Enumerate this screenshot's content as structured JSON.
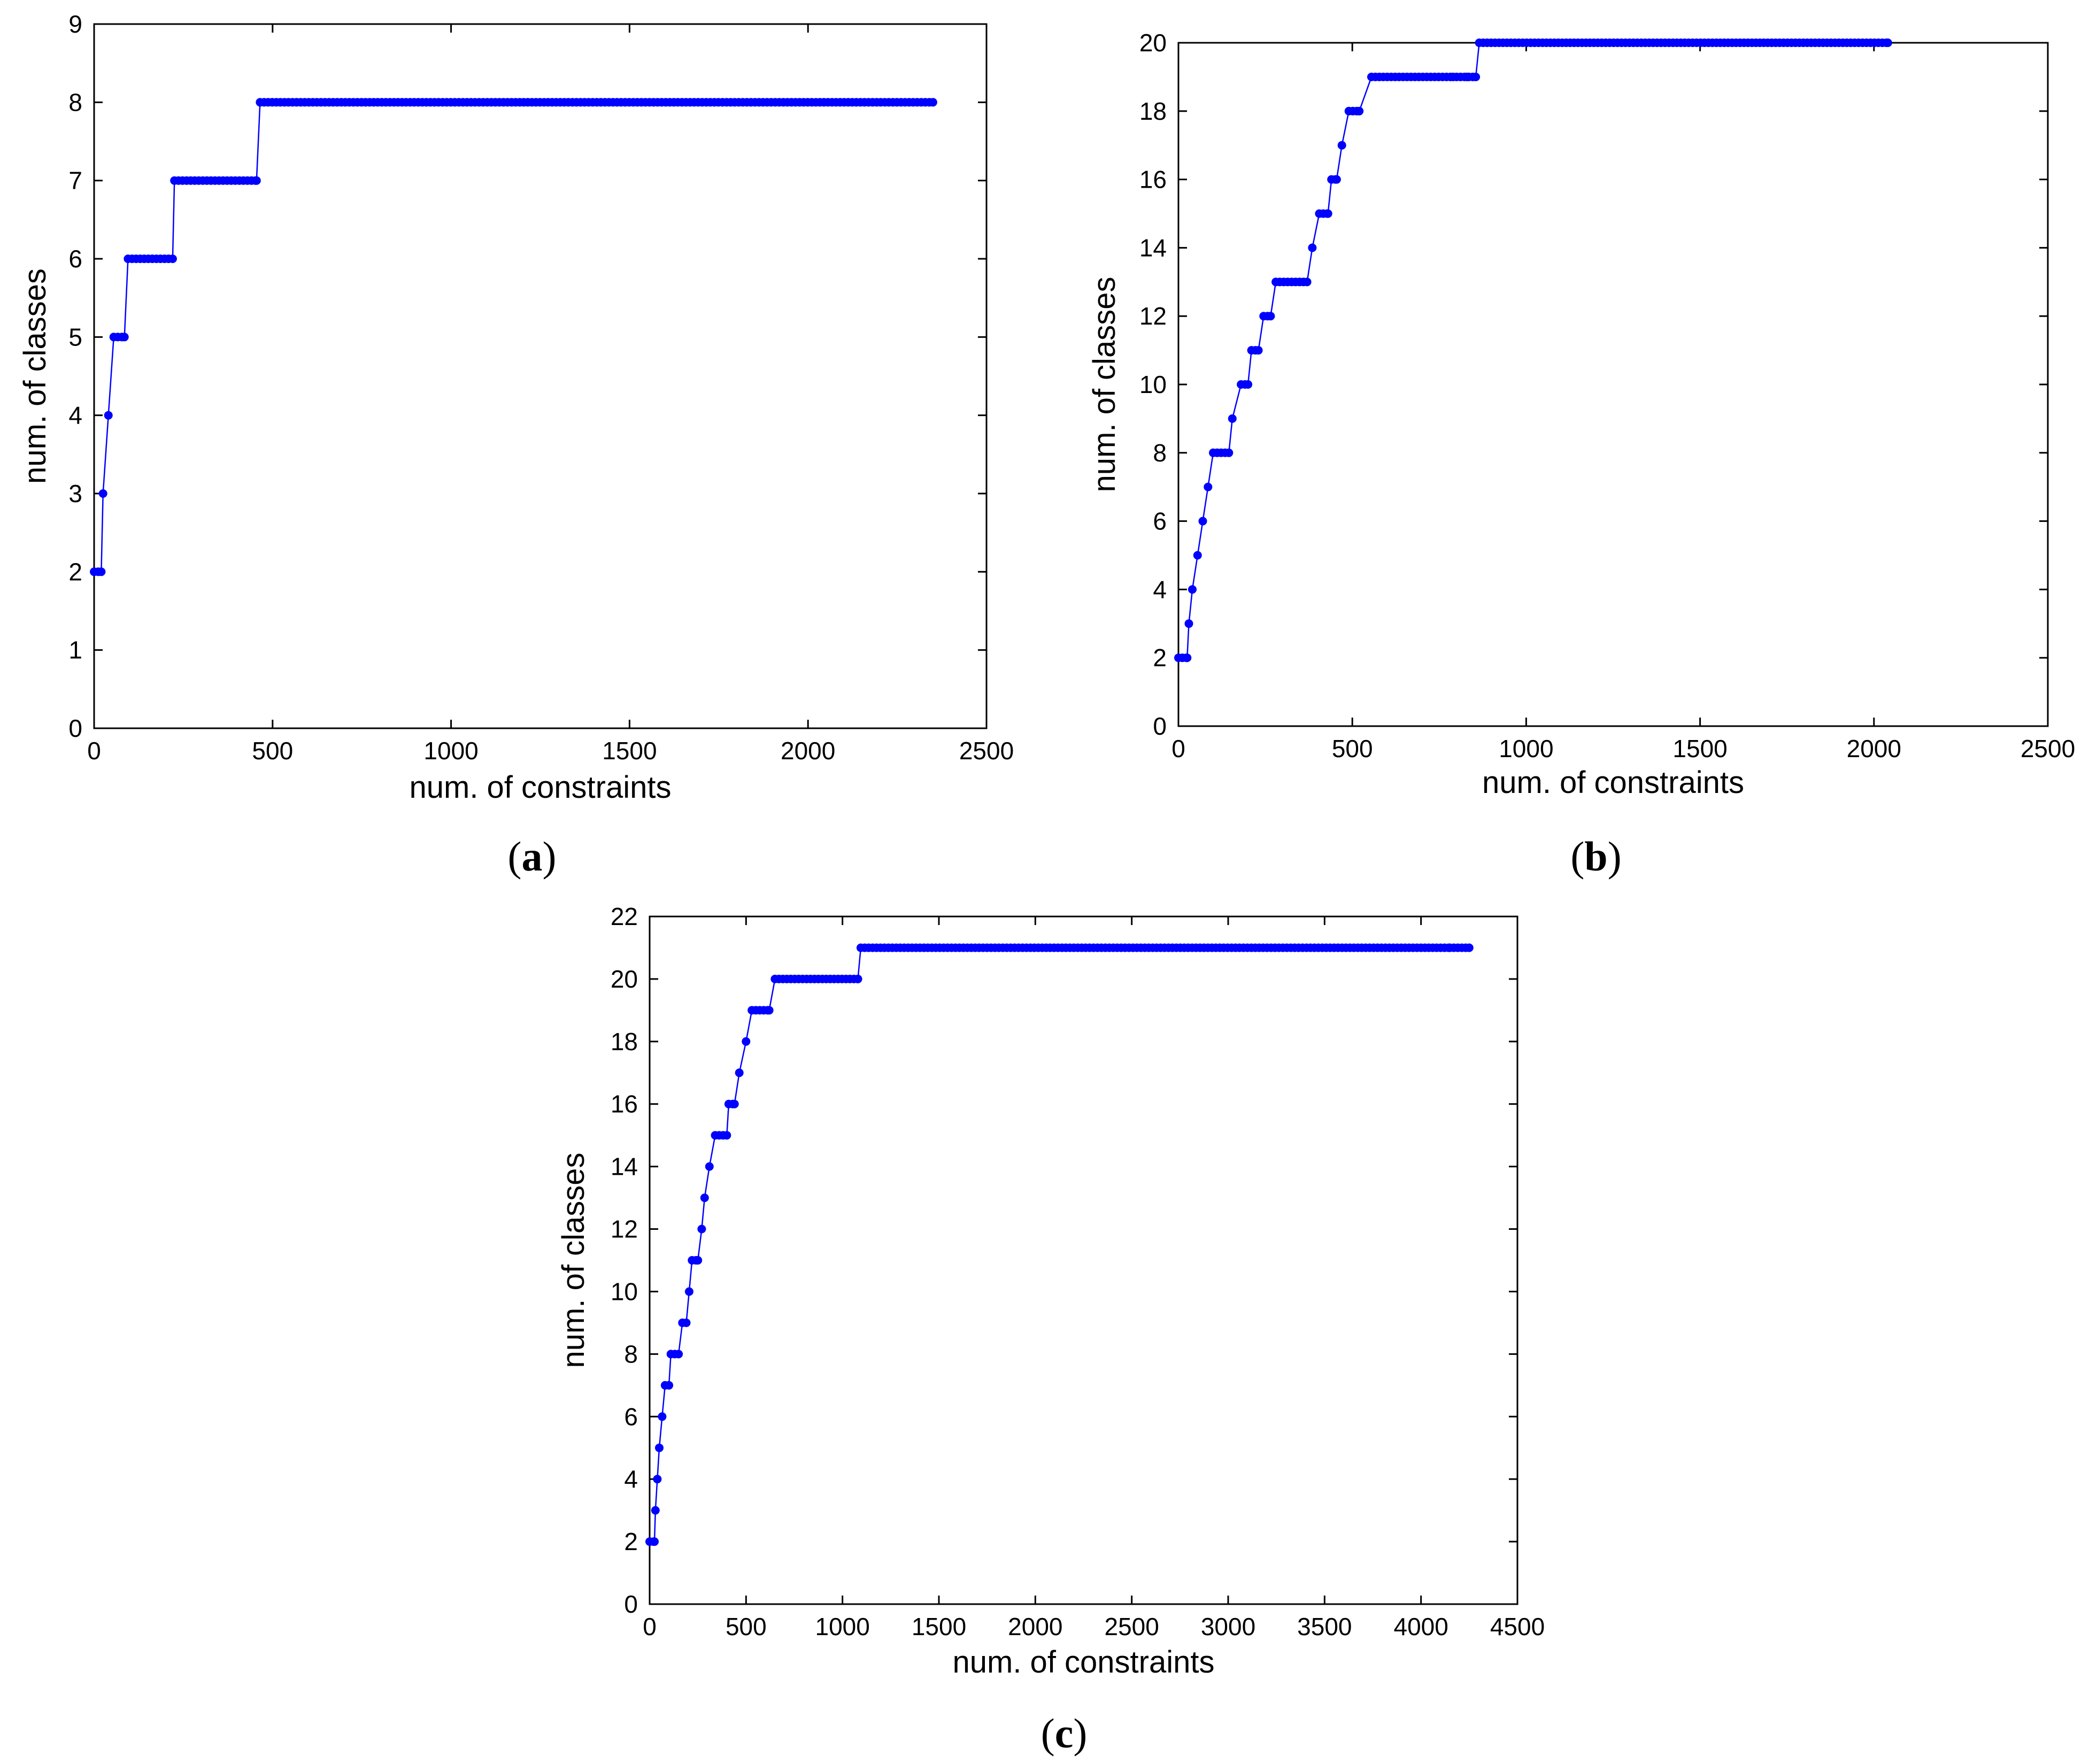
{
  "figure": {
    "captions": [
      "(a)",
      "(b)",
      "(c)"
    ],
    "caption_letters": [
      "a",
      "b",
      "c"
    ]
  },
  "colors": {
    "series": "#0000ff",
    "axes": "#000000",
    "background": "#ffffff"
  },
  "chart_data": [
    {
      "id": "a",
      "type": "line",
      "title": "",
      "xlabel": "num. of constraints",
      "ylabel": "num. of classes",
      "xlim": [
        0,
        2500
      ],
      "ylim": [
        0,
        9
      ],
      "xticks": [
        0,
        500,
        1000,
        1500,
        2000,
        2500
      ],
      "yticks": [
        0,
        1,
        2,
        3,
        4,
        5,
        6,
        7,
        8,
        9
      ],
      "grid": false,
      "marker": "dot",
      "series": [
        {
          "name": "num. of classes",
          "steps": [
            [
              0,
              2
            ],
            [
              20,
              2
            ],
            [
              25,
              3
            ],
            [
              40,
              4
            ],
            [
              55,
              5
            ],
            [
              85,
              5
            ],
            [
              95,
              6
            ],
            [
              220,
              6
            ],
            [
              225,
              7
            ],
            [
              455,
              7
            ],
            [
              465,
              8
            ],
            [
              2350,
              8
            ]
          ]
        }
      ]
    },
    {
      "id": "b",
      "type": "line",
      "title": "",
      "xlabel": "num. of constraints",
      "ylabel": "num. of classes",
      "xlim": [
        0,
        2500
      ],
      "ylim": [
        0,
        20
      ],
      "xticks": [
        0,
        500,
        1000,
        1500,
        2000,
        2500
      ],
      "yticks": [
        0,
        2,
        4,
        6,
        8,
        10,
        12,
        14,
        16,
        18,
        20
      ],
      "grid": false,
      "marker": "dot",
      "series": [
        {
          "name": "num. of classes",
          "steps": [
            [
              0,
              2
            ],
            [
              25,
              2
            ],
            [
              30,
              3
            ],
            [
              40,
              4
            ],
            [
              55,
              5
            ],
            [
              70,
              6
            ],
            [
              85,
              7
            ],
            [
              100,
              8
            ],
            [
              145,
              8
            ],
            [
              155,
              9
            ],
            [
              180,
              10
            ],
            [
              200,
              10
            ],
            [
              210,
              11
            ],
            [
              230,
              11
            ],
            [
              245,
              12
            ],
            [
              265,
              12
            ],
            [
              280,
              13
            ],
            [
              370,
              13
            ],
            [
              385,
              14
            ],
            [
              405,
              15
            ],
            [
              430,
              15
            ],
            [
              440,
              16
            ],
            [
              455,
              16
            ],
            [
              470,
              17
            ],
            [
              490,
              18
            ],
            [
              520,
              18
            ],
            [
              555,
              19
            ],
            [
              790,
              19
            ],
            [
              800,
              19
            ],
            [
              830,
              19
            ],
            [
              835,
              19
            ],
            [
              855,
              19
            ],
            [
              865,
              20
            ],
            [
              2040,
              20
            ]
          ]
        }
      ]
    },
    {
      "id": "c",
      "type": "line",
      "title": "",
      "xlabel": "num. of constraints",
      "ylabel": "num. of classes",
      "xlim": [
        0,
        4500
      ],
      "ylim": [
        0,
        22
      ],
      "xticks": [
        0,
        500,
        1000,
        1500,
        2000,
        2500,
        3000,
        3500,
        4000,
        4500
      ],
      "yticks": [
        0,
        2,
        4,
        6,
        8,
        10,
        12,
        14,
        16,
        18,
        20,
        22
      ],
      "grid": false,
      "marker": "dot",
      "series": [
        {
          "name": "num. of classes",
          "steps": [
            [
              0,
              2
            ],
            [
              25,
              2
            ],
            [
              30,
              3
            ],
            [
              40,
              4
            ],
            [
              50,
              5
            ],
            [
              65,
              6
            ],
            [
              80,
              7
            ],
            [
              100,
              7
            ],
            [
              110,
              8
            ],
            [
              150,
              8
            ],
            [
              170,
              9
            ],
            [
              190,
              9
            ],
            [
              205,
              10
            ],
            [
              220,
              11
            ],
            [
              250,
              11
            ],
            [
              270,
              12
            ],
            [
              285,
              13
            ],
            [
              310,
              14
            ],
            [
              340,
              15
            ],
            [
              400,
              15
            ],
            [
              410,
              16
            ],
            [
              440,
              16
            ],
            [
              465,
              17
            ],
            [
              500,
              18
            ],
            [
              530,
              19
            ],
            [
              620,
              19
            ],
            [
              650,
              20
            ],
            [
              1080,
              20
            ],
            [
              1095,
              21
            ],
            [
              4150,
              21
            ],
            [
              4250,
              21
            ]
          ]
        }
      ]
    }
  ]
}
